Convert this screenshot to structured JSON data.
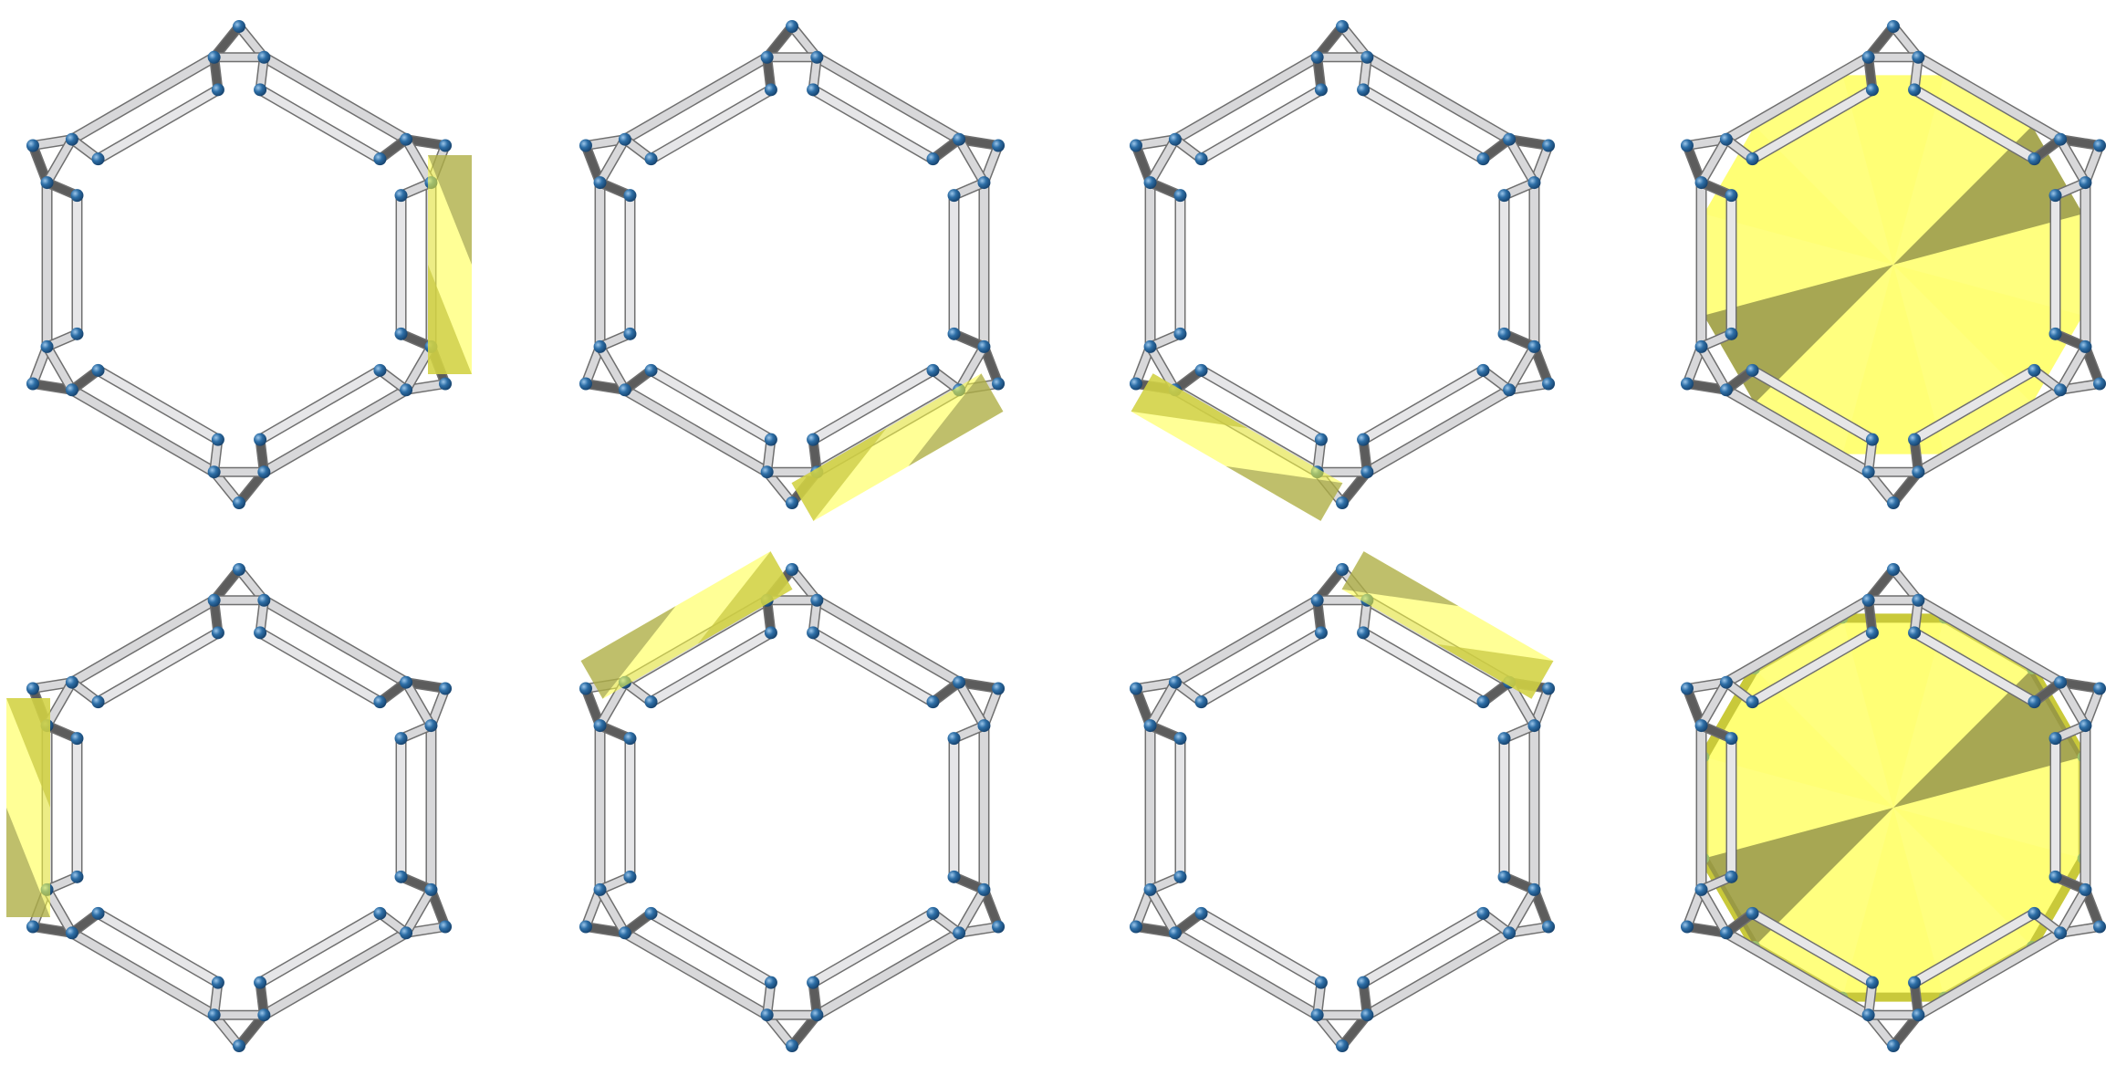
{
  "colors": {
    "background": "#ffffff",
    "edge_light": "#d8d8da",
    "edge_dark": "#5c5c5c",
    "vertex": "#2e6fa7",
    "face_yellow": "#ffff40",
    "face_shadow": "#8a8a48"
  },
  "panels": [
    {
      "row": 1,
      "col": 1,
      "highlight": "single-edge-face",
      "position": "right"
    },
    {
      "row": 1,
      "col": 2,
      "highlight": "single-edge-face",
      "position": "lower-right"
    },
    {
      "row": 1,
      "col": 3,
      "highlight": "single-edge-face",
      "position": "lower-left"
    },
    {
      "row": 1,
      "col": 4,
      "highlight": "central-polygon"
    },
    {
      "row": 2,
      "col": 1,
      "highlight": "single-edge-face",
      "position": "left"
    },
    {
      "row": 2,
      "col": 2,
      "highlight": "single-edge-face",
      "position": "upper-left"
    },
    {
      "row": 2,
      "col": 3,
      "highlight": "single-edge-face",
      "position": "upper-right"
    },
    {
      "row": 2,
      "col": 4,
      "highlight": "central-polygon"
    }
  ]
}
